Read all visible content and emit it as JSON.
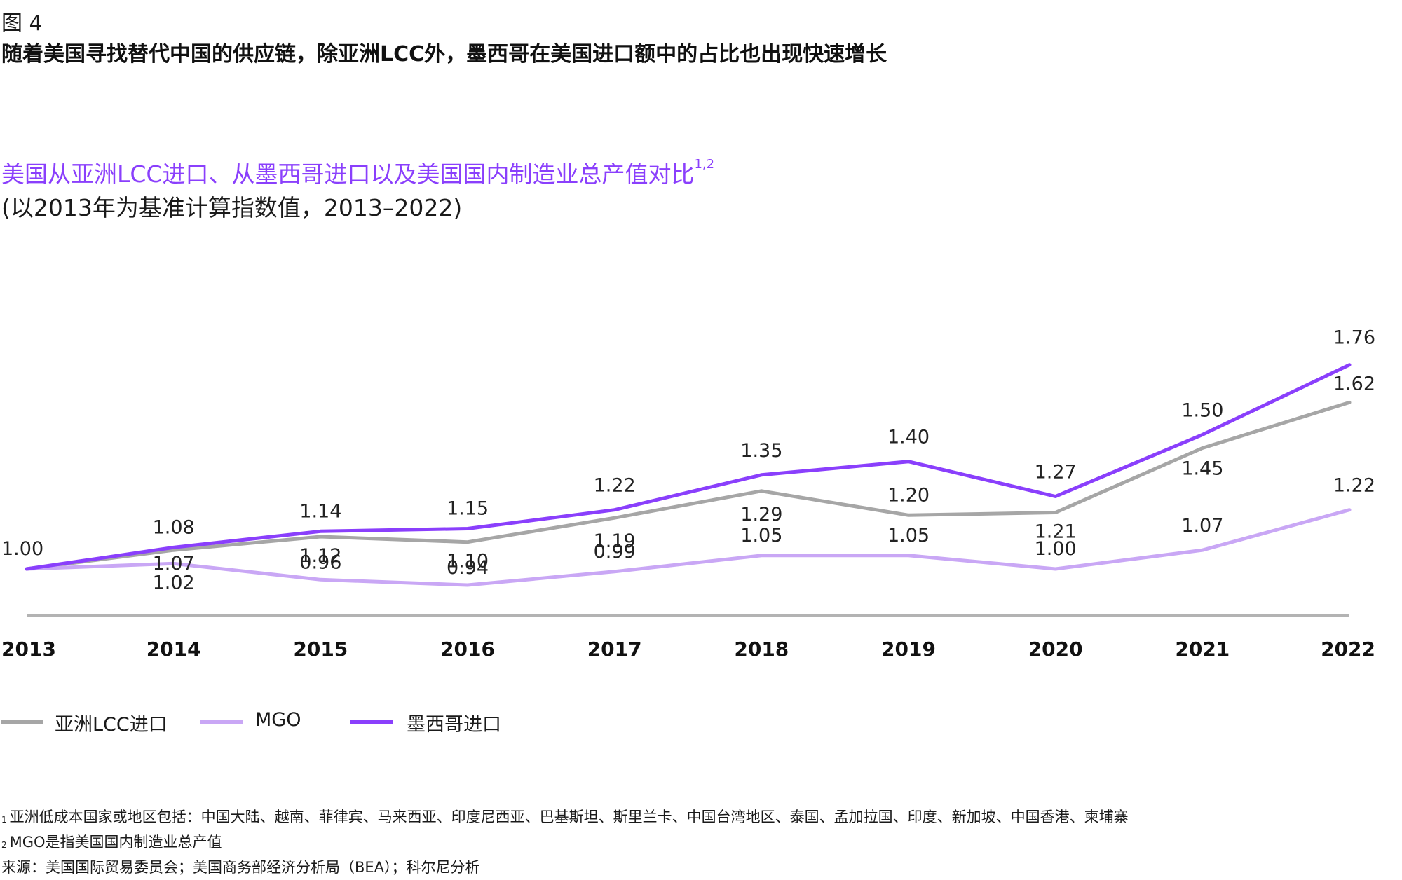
{
  "figure": {
    "label": "图 4",
    "title": "随着美国寻找替代中国的供应链，除亚洲LCC外，墨西哥在美国进口额中的占比也出现快速增长"
  },
  "chart_data": {
    "type": "line",
    "title": "美国从亚洲LCC进口、从墨西哥进口以及美国国内制造业总产值对比",
    "title_superscript": "1,2",
    "subtitle": "(以2013年为基准计算指数值，2013–2022)",
    "xlabel": "",
    "ylabel": "",
    "x": [
      "2013",
      "2014",
      "2015",
      "2016",
      "2017",
      "2018",
      "2019",
      "2020",
      "2021",
      "2022"
    ],
    "ylim": [
      0.9,
      1.8
    ],
    "grid": false,
    "legend_position": "bottom-left",
    "series": [
      {
        "name": "亚洲LCC进口",
        "color": "#a6a6a6",
        "values": [
          1.0,
          1.07,
          1.12,
          1.1,
          1.19,
          1.29,
          1.2,
          1.21,
          1.45,
          1.62
        ],
        "labels": [
          "1.00",
          "1.07",
          "1.12",
          "1.10",
          "1.19",
          "1.29",
          "1.20",
          "1.21",
          "1.45",
          "1.62"
        ]
      },
      {
        "name": "MGO",
        "color": "#c9a7f5",
        "values": [
          1.0,
          1.02,
          0.96,
          0.94,
          0.99,
          1.05,
          1.05,
          1.0,
          1.07,
          1.22
        ],
        "labels": [
          "1.00",
          "1.02",
          "0.96",
          "0.94",
          "0.99",
          "1.05",
          "1.05",
          "1.00",
          "1.07",
          "1.22"
        ]
      },
      {
        "name": "墨西哥进口",
        "color": "#8a3ffc",
        "values": [
          1.0,
          1.08,
          1.14,
          1.15,
          1.22,
          1.35,
          1.4,
          1.27,
          1.5,
          1.76
        ],
        "labels": [
          "1.00",
          "1.08",
          "1.14",
          "1.15",
          "1.22",
          "1.35",
          "1.40",
          "1.27",
          "1.50",
          "1.76"
        ]
      }
    ]
  },
  "footnotes": [
    {
      "marker": "1",
      "text": "亚洲低成本国家或地区包括：中国大陆、越南、菲律宾、马来西亚、印度尼西亚、巴基斯坦、斯里兰卡、中国台湾地区、泰国、孟加拉国、印度、新加坡、中国香港、柬埔寨"
    },
    {
      "marker": "2",
      "text": "MGO是指美国国内制造业总产值"
    }
  ],
  "source": "来源：美国国际贸易委员会；美国商务部经济分析局（BEA）；科尔尼分析"
}
